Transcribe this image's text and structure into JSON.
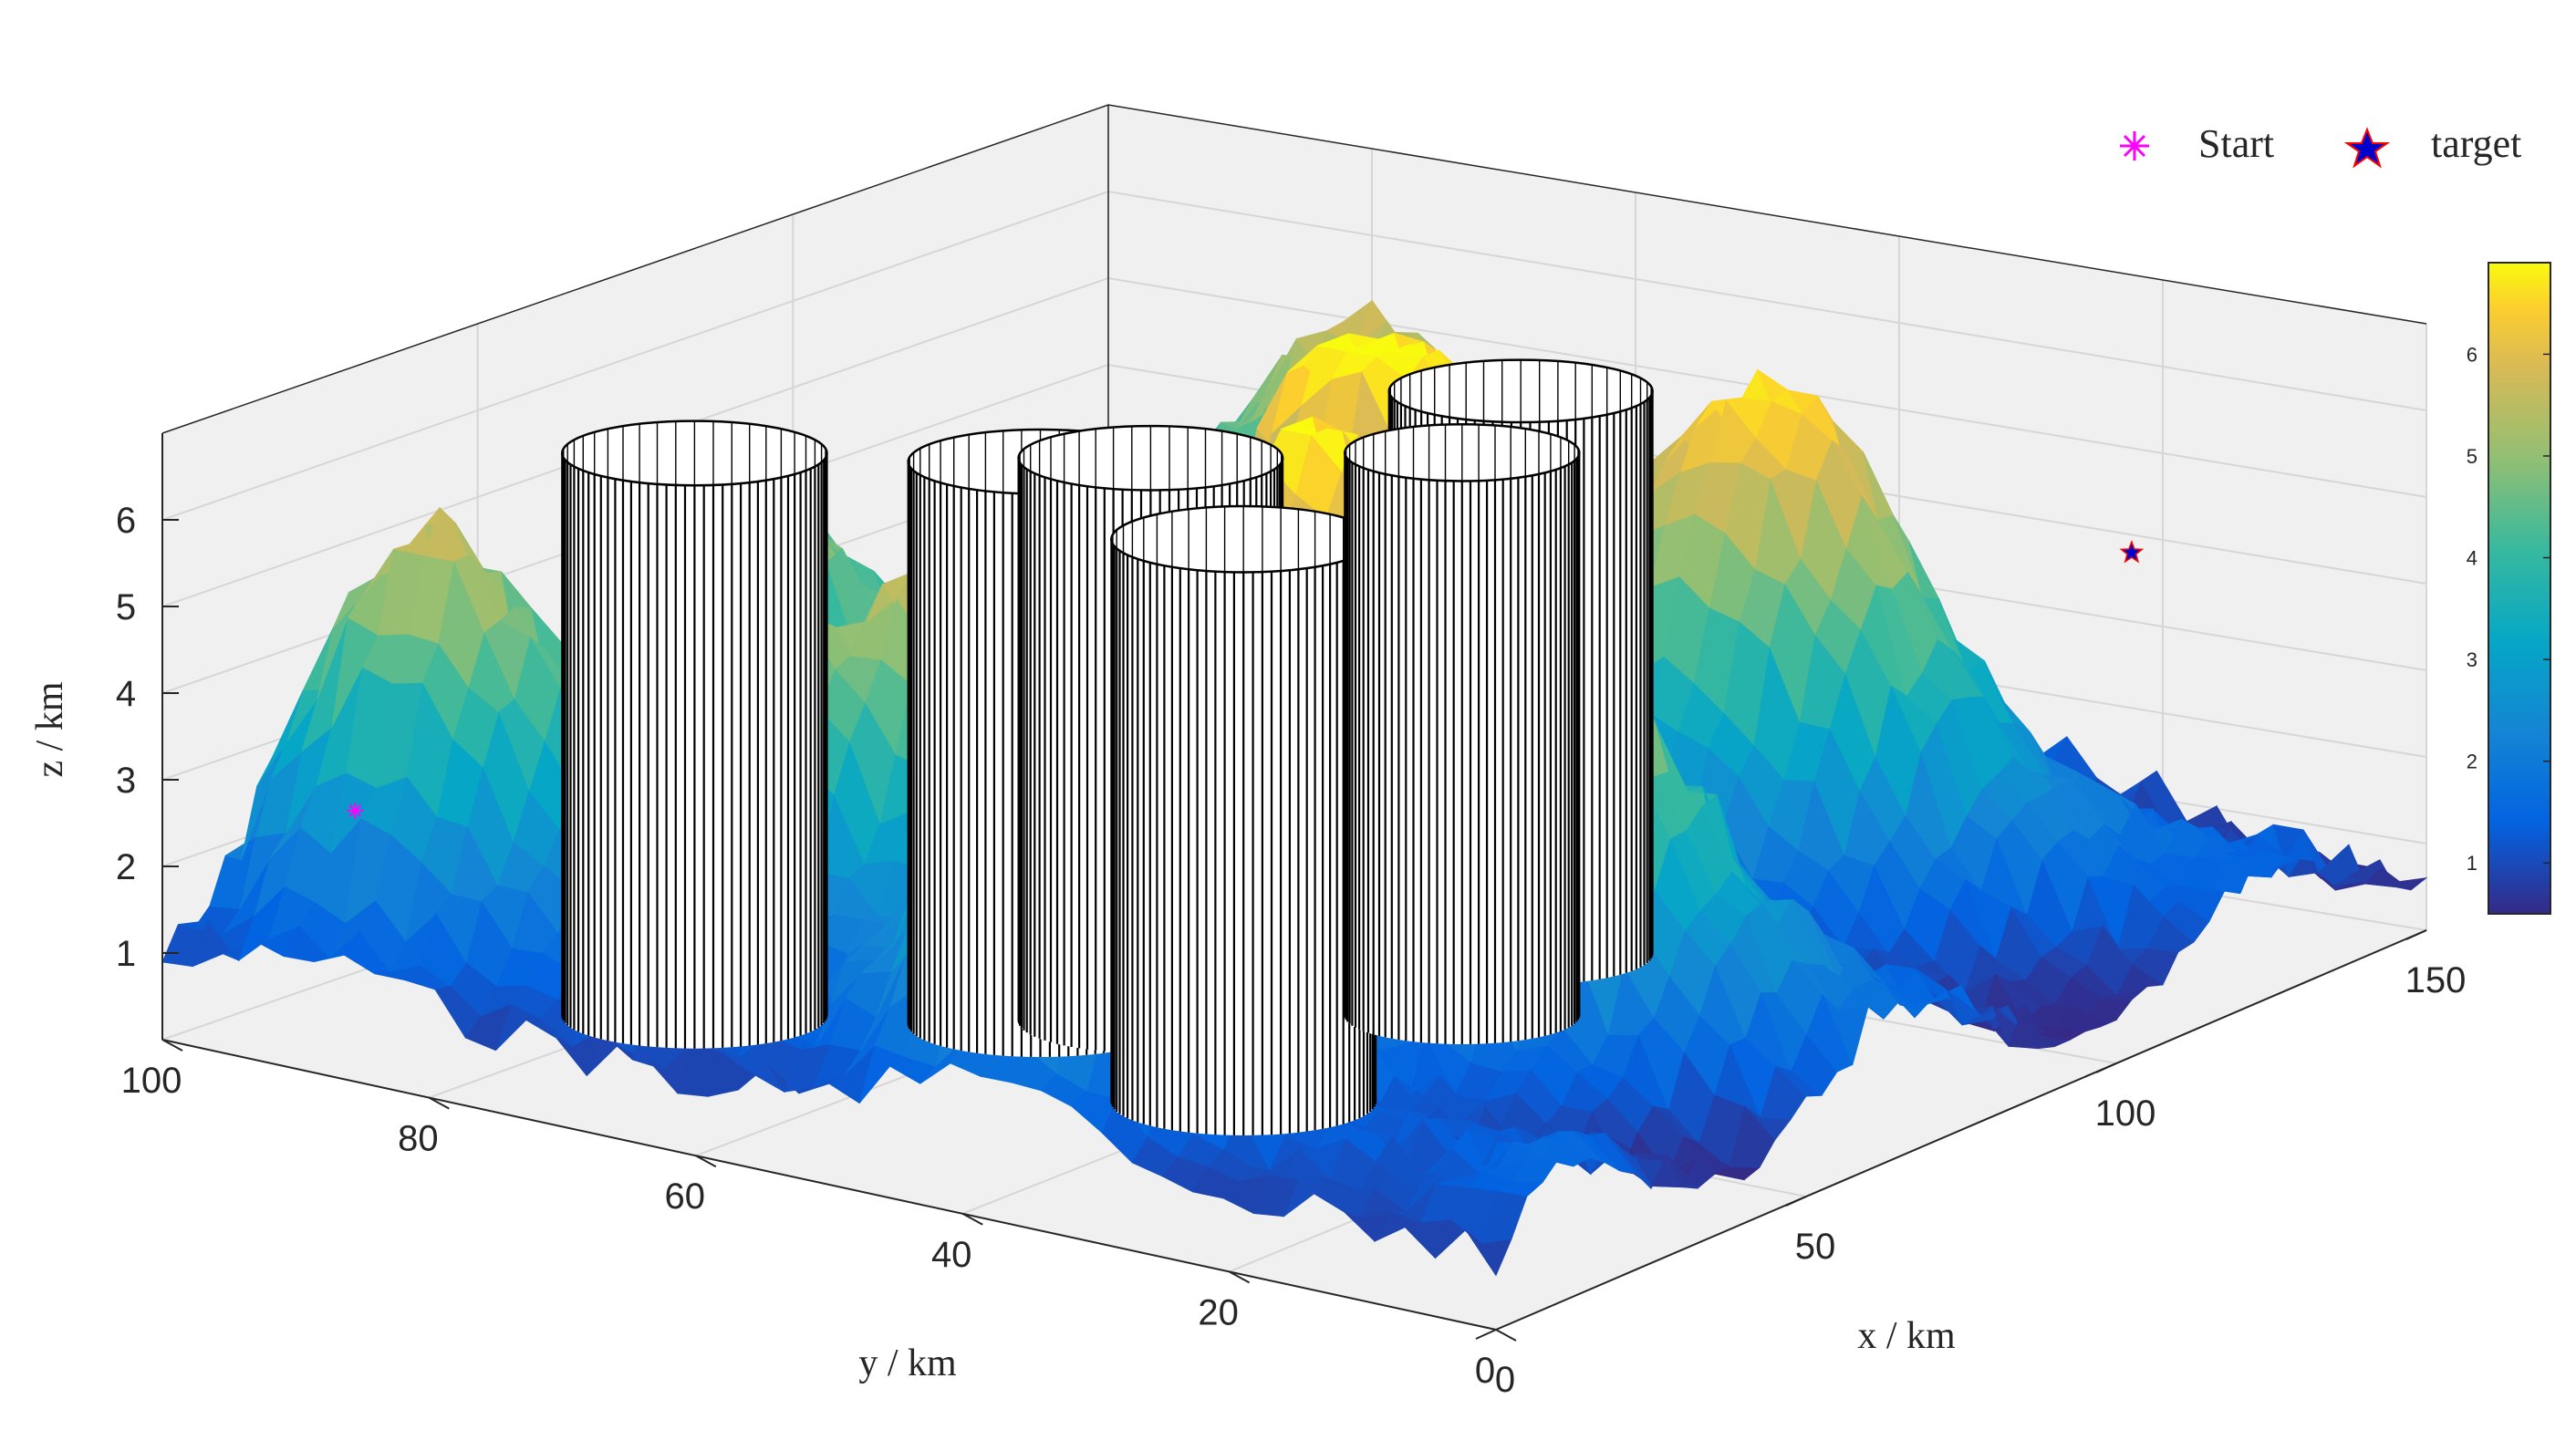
{
  "chart_data": {
    "type": "surface",
    "xlabel": "x / km",
    "ylabel": "y / km",
    "zlabel": "z / km",
    "xlim": [
      0,
      150
    ],
    "ylim": [
      0,
      100
    ],
    "zlim": [
      0,
      7
    ],
    "x_ticks": [
      0,
      50,
      100,
      150
    ],
    "y_ticks": [
      0,
      20,
      40,
      60,
      80,
      100
    ],
    "z_ticks": [
      1,
      2,
      3,
      4,
      5,
      6
    ],
    "colorbar": {
      "min": 0.5,
      "max": 6.9,
      "ticks": [
        1,
        2,
        3,
        4,
        5,
        6
      ],
      "colormap": "parula"
    },
    "grid": true,
    "legend_position": "top-right",
    "legend": [
      {
        "label": "Start",
        "marker": "asterisk",
        "color": "#ff00ff"
      },
      {
        "label": "target",
        "marker": "star",
        "color": "#0000cc",
        "edge": "#ff0000"
      }
    ],
    "terrain_peaks": [
      {
        "x": 18,
        "y": 38,
        "height": 6.3,
        "spread": 12
      },
      {
        "x": 45,
        "y": 55,
        "height": 6.7,
        "spread": 14
      },
      {
        "x": 70,
        "y": 45,
        "height": 6.4,
        "spread": 11
      },
      {
        "x": 95,
        "y": 55,
        "height": 6.8,
        "spread": 12
      },
      {
        "x": 110,
        "y": 30,
        "height": 5.5,
        "spread": 16
      },
      {
        "x": 55,
        "y": 20,
        "height": 4.5,
        "spread": 14
      },
      {
        "x": 20,
        "y": 90,
        "height": 5.0,
        "spread": 12
      },
      {
        "x": 60,
        "y": 85,
        "height": 4.6,
        "spread": 14
      },
      {
        "x": 130,
        "y": 70,
        "height": 4.3,
        "spread": 18
      },
      {
        "x": 30,
        "y": 70,
        "height": 3.5,
        "spread": 10
      }
    ],
    "cylinders": [
      {
        "x": 62,
        "y": 55,
        "radius": 9,
        "height": 6.5
      },
      {
        "x": 55,
        "y": 60,
        "radius": 9,
        "height": 6.5
      },
      {
        "x": 45,
        "y": 40,
        "radius": 9,
        "height": 6.5
      },
      {
        "x": 100,
        "y": 45,
        "radius": 9,
        "height": 6.5
      },
      {
        "x": 80,
        "y": 40,
        "radius": 8,
        "height": 6.5
      },
      {
        "x": 38,
        "y": 78,
        "radius": 9,
        "height": 6.5
      }
    ],
    "start_point": {
      "x": 20,
      "y": 95,
      "z": 2.3
    },
    "target_point": {
      "x": 145,
      "y": 20,
      "z": 4.0
    }
  }
}
